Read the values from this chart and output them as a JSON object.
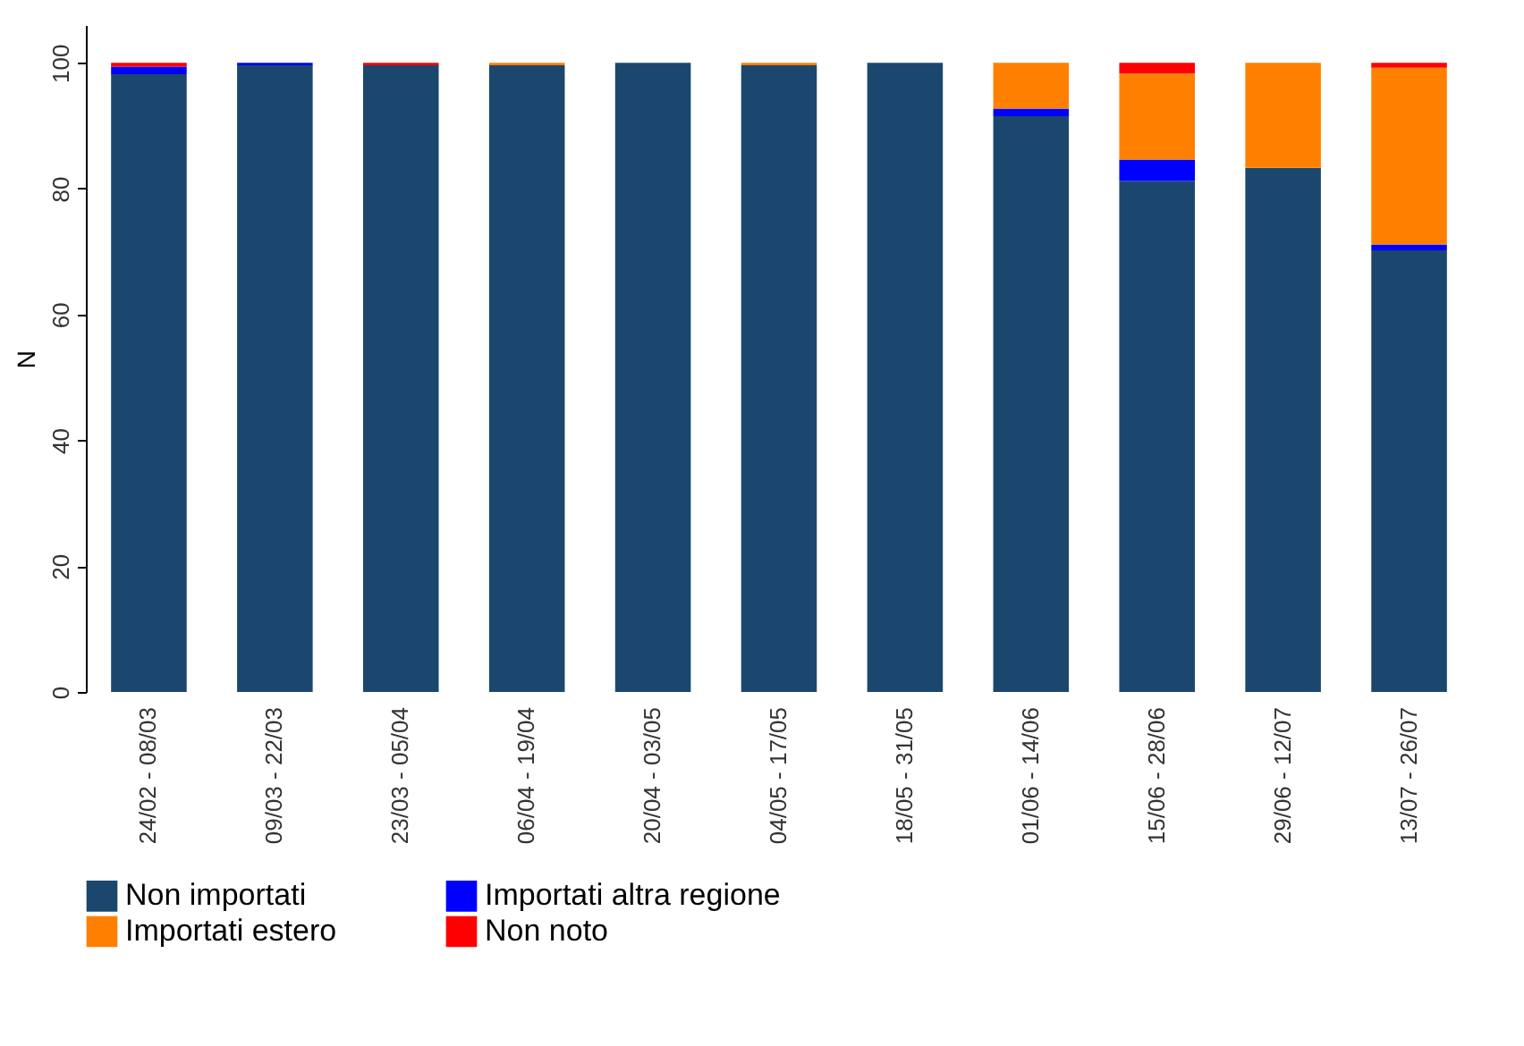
{
  "chart_data": {
    "type": "bar",
    "stacked": true,
    "ylabel": "N",
    "ylim": [
      0,
      106
    ],
    "yticks": [
      0,
      20,
      40,
      60,
      80,
      100
    ],
    "legend": "bottom",
    "grid": false,
    "categories": [
      "24/02 - 08/03",
      "09/03 - 22/03",
      "23/03 - 05/04",
      "06/04 - 19/04",
      "20/04 - 03/05",
      "04/05 - 17/05",
      "18/05 - 31/05",
      "01/06 - 14/06",
      "15/06 - 28/06",
      "29/06 - 12/07",
      "13/07 - 26/07"
    ],
    "series": [
      {
        "name": "Non importati",
        "color": "#1b476e",
        "values": [
          98.2,
          99.6,
          99.6,
          99.6,
          100,
          99.6,
          100,
          91.5,
          81.2,
          83.3,
          70.2
        ]
      },
      {
        "name": "Importati altra regione",
        "color": "#0000ff",
        "values": [
          1.2,
          0.4,
          0,
          0,
          0,
          0,
          0,
          1.2,
          3.4,
          0,
          0.9
        ]
      },
      {
        "name": "Importati estero",
        "color": "#ff8000",
        "values": [
          0,
          0,
          0,
          0.4,
          0,
          0.4,
          0,
          7.3,
          13.7,
          16.7,
          28.1
        ]
      },
      {
        "name": "Non noto",
        "color": "#ff0000",
        "values": [
          0.6,
          0,
          0.4,
          0,
          0,
          0,
          0,
          0,
          1.7,
          0,
          0.8
        ]
      }
    ]
  }
}
